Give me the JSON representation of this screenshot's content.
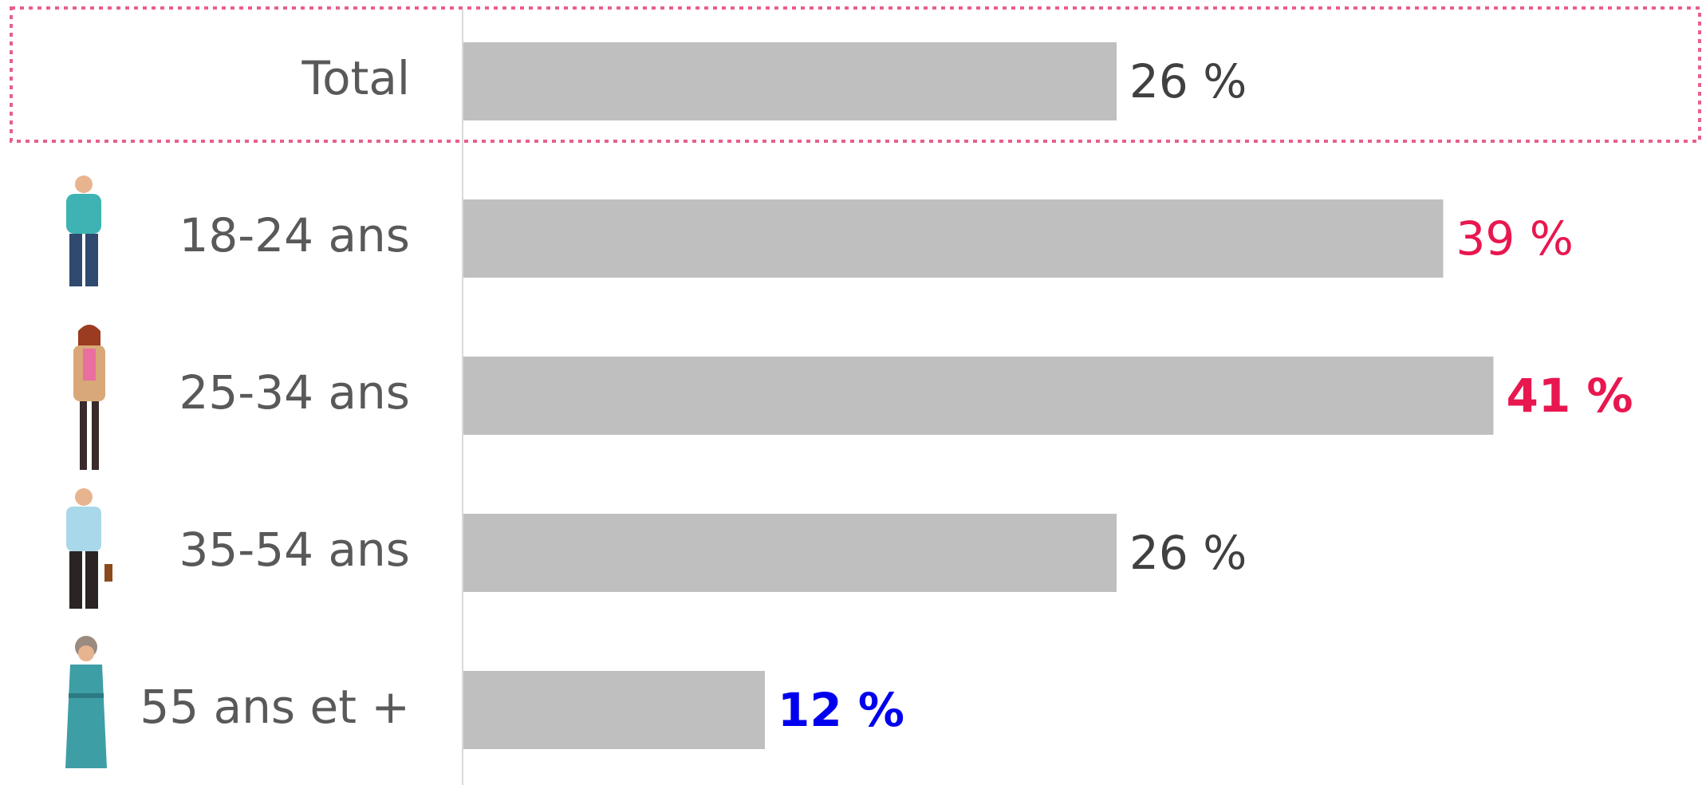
{
  "chart_data": {
    "type": "hbar",
    "categories": [
      "Total",
      "18-24 ans",
      "25-34 ans",
      "35-54 ans",
      "55 ans et +"
    ],
    "values": [
      26,
      39,
      41,
      26,
      12
    ],
    "value_labels": [
      "26 %",
      "39 %",
      "41 %",
      "26 %",
      "12 %"
    ],
    "color": "#bfbfbf",
    "value_label_colors": [
      "#404040",
      "#e8174f",
      "#e8174f",
      "#404040",
      "#0000ee"
    ],
    "value_label_bold": [
      false,
      false,
      true,
      false,
      true
    ]
  }
}
